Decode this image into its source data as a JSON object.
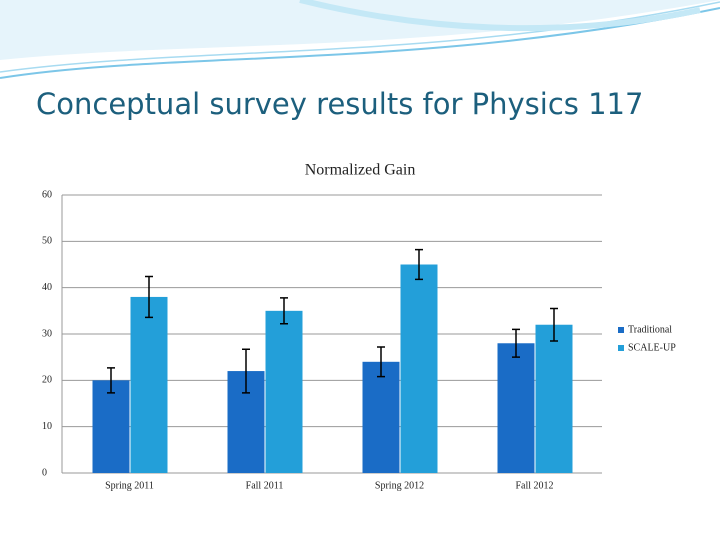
{
  "header": {
    "title": "Conceptual survey results for Physics 117"
  },
  "chart_data": {
    "type": "bar",
    "title": "Normalized Gain",
    "categories": [
      "Spring 2011",
      "Fall 2011",
      "Spring 2012",
      "Fall 2012"
    ],
    "series": [
      {
        "name": "Traditional",
        "color": "#1a6cc6",
        "values": [
          20,
          22,
          24,
          28
        ],
        "errors": [
          2.7,
          4.7,
          3.2,
          3
        ]
      },
      {
        "name": "SCALE-UP",
        "color": "#239fd9",
        "values": [
          38,
          35,
          45,
          32
        ],
        "errors": [
          4.4,
          2.8,
          3.2,
          3.5
        ]
      }
    ],
    "ylim": [
      0,
      60
    ],
    "yticks": [
      0,
      10,
      20,
      30,
      40,
      50,
      60
    ],
    "grid": true,
    "legend": "right"
  }
}
